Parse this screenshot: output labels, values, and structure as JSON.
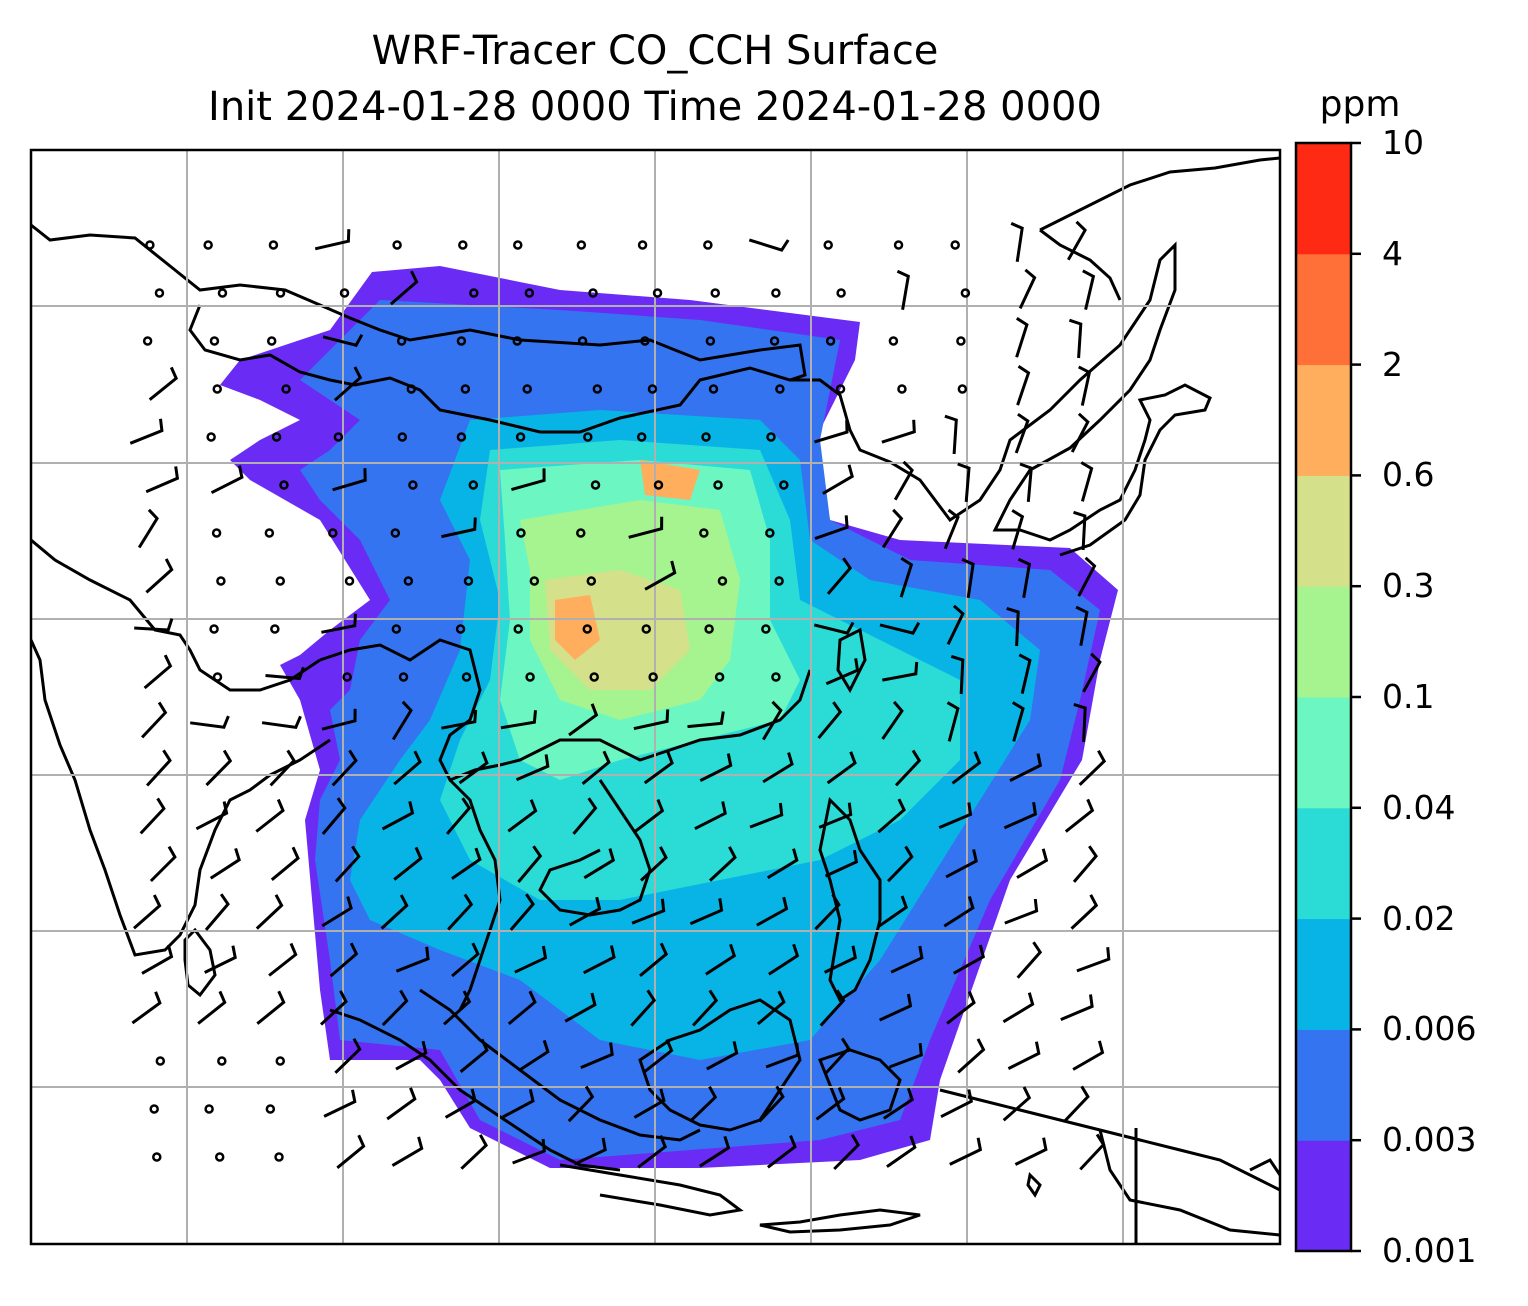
{
  "title_line1": "WRF-Tracer CO_CCH Surface",
  "title_line2": "Init 2024-01-28 0000 Time 2024-01-28 0000",
  "colorbar": {
    "unit": "ppm",
    "ticks": [
      "0.001",
      "0.003",
      "0.006",
      "0.02",
      "0.04",
      "0.1",
      "0.3",
      "0.6",
      "2",
      "4",
      "10"
    ],
    "colors": [
      "#6a2cf5",
      "#3574f0",
      "#08b4e6",
      "#2bdcd6",
      "#6cf6c2",
      "#a6f48f",
      "#d4e08a",
      "#ffae5e",
      "#ff7038",
      "#ff2a14"
    ]
  },
  "map": {
    "grid": "on",
    "wind_barbs": "shown",
    "coastlines": "shown"
  }
}
